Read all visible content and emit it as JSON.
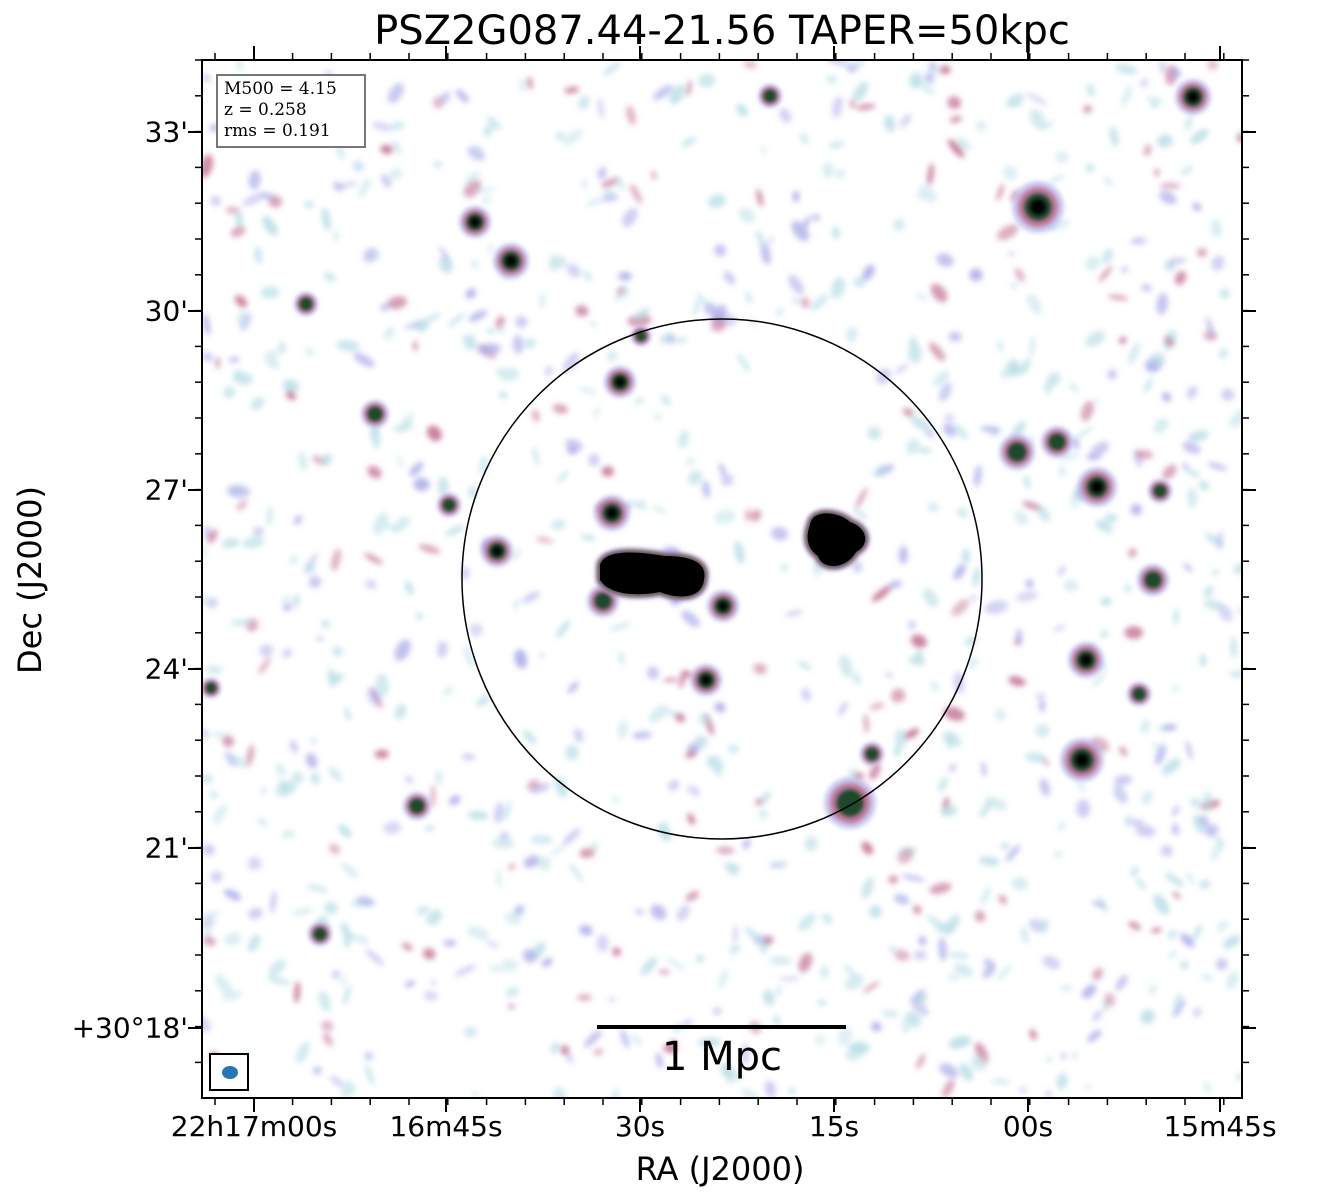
{
  "figure": {
    "title": "PSZ2G087.44-21.56 TAPER=50kpc",
    "xlabel": "RA (J2000)",
    "ylabel": "Dec (J2000)",
    "x_tick_labels": [
      "22h17m00s",
      "16m45s",
      "30s",
      "15s",
      "00s",
      "15m45s"
    ],
    "y_tick_labels": [
      "33'",
      "30'",
      "27'",
      "24'",
      "21'",
      "+30°18'"
    ],
    "info": {
      "mass": "M500 = 4.15",
      "redshift": "z = 0.258",
      "rms": "rms = 0.191"
    },
    "scalebar_label": "1 Mpc",
    "colors": {
      "saturated": "#000000",
      "bright_core": "#1f4a2a",
      "mid": "#c06a8e",
      "faint": "#a9a8e8",
      "noise": "#b7dde6",
      "beam": "#2377b4"
    }
  }
}
